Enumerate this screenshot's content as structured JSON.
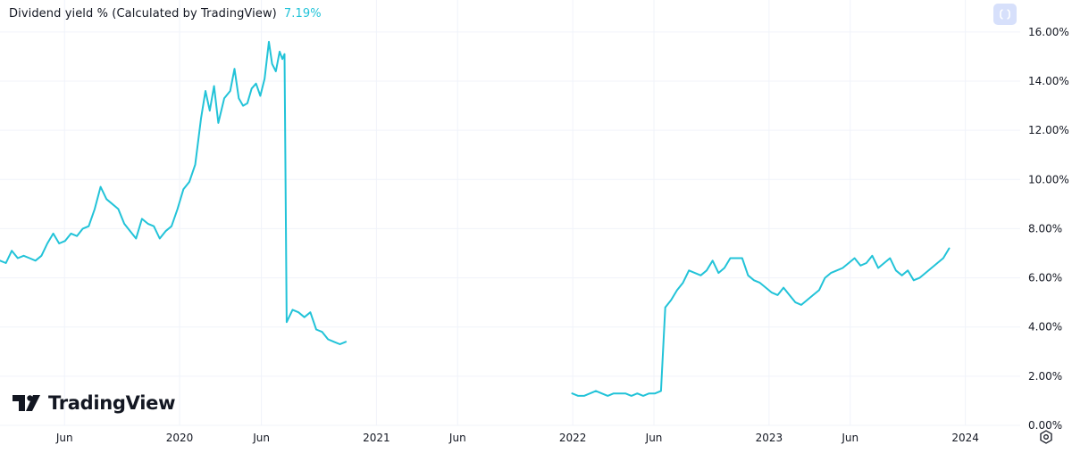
{
  "header": {
    "title": "Dividend yield % (Calculated by TradingView)",
    "value": "7.19%"
  },
  "brand": {
    "name": "TradingView"
  },
  "icons": {
    "reset": "reset-scale-icon",
    "settings": "gear-icon",
    "logo": "tradingview-logo-icon"
  },
  "colors": {
    "line": "#22c3d8",
    "grid": "#f0f3fa",
    "axis_text": "#131722",
    "reset_bg": "#d7e0fb"
  },
  "chart_data": {
    "type": "line",
    "title": "Dividend yield % (Calculated by TradingView)",
    "last_value_label": "7.19%",
    "y_ticks": [
      "16.00%",
      "14.00%",
      "12.00%",
      "10.00%",
      "8.00%",
      "6.00%",
      "4.00%",
      "2.00%",
      "0.00%"
    ],
    "y_tick_values": [
      16,
      14,
      12,
      10,
      8,
      6,
      4,
      2,
      0
    ],
    "ylim": [
      0,
      17.3
    ],
    "x_range": [
      "2019-02-01",
      "2024-04-12"
    ],
    "x_ticks": [
      {
        "label": "Jun",
        "date": "2019-06-01"
      },
      {
        "label": "2020",
        "date": "2020-01-01"
      },
      {
        "label": "Jun",
        "date": "2020-06-01"
      },
      {
        "label": "2021",
        "date": "2021-01-01"
      },
      {
        "label": "Jun",
        "date": "2021-06-01"
      },
      {
        "label": "2022",
        "date": "2022-01-01"
      },
      {
        "label": "Jun",
        "date": "2022-06-01"
      },
      {
        "label": "2023",
        "date": "2023-01-01"
      },
      {
        "label": "Jun",
        "date": "2023-06-01"
      },
      {
        "label": "2024",
        "date": "2024-01-01"
      }
    ],
    "grid": true,
    "series": [
      {
        "segments": [
          [
            [
              "2019-02-01",
              6.7
            ],
            [
              "2019-02-12",
              6.6
            ],
            [
              "2019-02-23",
              7.1
            ],
            [
              "2019-03-06",
              6.8
            ],
            [
              "2019-03-17",
              6.9
            ],
            [
              "2019-03-28",
              6.8
            ],
            [
              "2019-04-08",
              6.7
            ],
            [
              "2019-04-19",
              6.9
            ],
            [
              "2019-04-30",
              7.4
            ],
            [
              "2019-05-11",
              7.8
            ],
            [
              "2019-05-22",
              7.4
            ],
            [
              "2019-06-02",
              7.5
            ],
            [
              "2019-06-13",
              7.8
            ],
            [
              "2019-06-24",
              7.7
            ],
            [
              "2019-07-05",
              8.0
            ],
            [
              "2019-07-16",
              8.1
            ],
            [
              "2019-07-27",
              8.8
            ],
            [
              "2019-08-07",
              9.7
            ],
            [
              "2019-08-18",
              9.2
            ],
            [
              "2019-08-29",
              9.0
            ],
            [
              "2019-09-09",
              8.8
            ],
            [
              "2019-09-20",
              8.2
            ],
            [
              "2019-10-01",
              7.9
            ],
            [
              "2019-10-12",
              7.6
            ],
            [
              "2019-10-23",
              8.4
            ],
            [
              "2019-11-03",
              8.2
            ],
            [
              "2019-11-14",
              8.1
            ],
            [
              "2019-11-25",
              7.6
            ],
            [
              "2019-12-06",
              7.9
            ],
            [
              "2019-12-17",
              8.1
            ],
            [
              "2019-12-28",
              8.8
            ],
            [
              "2020-01-08",
              9.6
            ],
            [
              "2020-01-19",
              9.9
            ],
            [
              "2020-01-30",
              10.6
            ],
            [
              "2020-02-10",
              12.5
            ],
            [
              "2020-02-18",
              13.6
            ],
            [
              "2020-02-26",
              12.8
            ],
            [
              "2020-03-05",
              13.8
            ],
            [
              "2020-03-13",
              12.3
            ],
            [
              "2020-03-24",
              13.3
            ],
            [
              "2020-04-04",
              13.6
            ],
            [
              "2020-04-12",
              14.5
            ],
            [
              "2020-04-20",
              13.3
            ],
            [
              "2020-04-28",
              13.0
            ],
            [
              "2020-05-06",
              13.1
            ],
            [
              "2020-05-14",
              13.7
            ],
            [
              "2020-05-22",
              13.9
            ],
            [
              "2020-05-30",
              13.4
            ],
            [
              "2020-06-07",
              14.1
            ],
            [
              "2020-06-15",
              15.6
            ],
            [
              "2020-06-21",
              14.7
            ],
            [
              "2020-06-28",
              14.4
            ],
            [
              "2020-07-05",
              15.2
            ],
            [
              "2020-07-10",
              14.9
            ],
            [
              "2020-07-14",
              15.1
            ],
            [
              "2020-07-18",
              4.2
            ],
            [
              "2020-07-29",
              4.7
            ],
            [
              "2020-08-09",
              4.6
            ],
            [
              "2020-08-20",
              4.4
            ],
            [
              "2020-08-31",
              4.6
            ],
            [
              "2020-09-11",
              3.9
            ],
            [
              "2020-09-22",
              3.8
            ],
            [
              "2020-10-03",
              3.5
            ],
            [
              "2020-10-14",
              3.4
            ],
            [
              "2020-10-25",
              3.3
            ],
            [
              "2020-11-05",
              3.4
            ]
          ],
          [
            [
              "2021-12-31",
              1.3
            ],
            [
              "2022-01-11",
              1.2
            ],
            [
              "2022-01-22",
              1.2
            ],
            [
              "2022-02-02",
              1.3
            ],
            [
              "2022-02-13",
              1.4
            ],
            [
              "2022-02-24",
              1.3
            ],
            [
              "2022-03-07",
              1.2
            ],
            [
              "2022-03-18",
              1.3
            ],
            [
              "2022-03-29",
              1.3
            ],
            [
              "2022-04-09",
              1.3
            ],
            [
              "2022-04-20",
              1.2
            ],
            [
              "2022-05-01",
              1.3
            ],
            [
              "2022-05-12",
              1.2
            ],
            [
              "2022-05-23",
              1.3
            ],
            [
              "2022-06-03",
              1.3
            ],
            [
              "2022-06-14",
              1.4
            ],
            [
              "2022-06-22",
              4.8
            ],
            [
              "2022-07-03",
              5.1
            ],
            [
              "2022-07-14",
              5.5
            ],
            [
              "2022-07-25",
              5.8
            ],
            [
              "2022-08-05",
              6.3
            ],
            [
              "2022-08-16",
              6.2
            ],
            [
              "2022-08-27",
              6.1
            ],
            [
              "2022-09-07",
              6.3
            ],
            [
              "2022-09-18",
              6.7
            ],
            [
              "2022-09-29",
              6.2
            ],
            [
              "2022-10-10",
              6.4
            ],
            [
              "2022-10-21",
              6.8
            ],
            [
              "2022-11-01",
              6.8
            ],
            [
              "2022-11-12",
              6.8
            ],
            [
              "2022-11-23",
              6.1
            ],
            [
              "2022-12-04",
              5.9
            ],
            [
              "2022-12-15",
              5.8
            ],
            [
              "2022-12-26",
              5.6
            ],
            [
              "2023-01-06",
              5.4
            ],
            [
              "2023-01-17",
              5.3
            ],
            [
              "2023-01-28",
              5.6
            ],
            [
              "2023-02-08",
              5.3
            ],
            [
              "2023-02-19",
              5.0
            ],
            [
              "2023-03-02",
              4.9
            ],
            [
              "2023-03-13",
              5.1
            ],
            [
              "2023-03-24",
              5.3
            ],
            [
              "2023-04-04",
              5.5
            ],
            [
              "2023-04-15",
              6.0
            ],
            [
              "2023-04-26",
              6.2
            ],
            [
              "2023-05-07",
              6.3
            ],
            [
              "2023-05-18",
              6.4
            ],
            [
              "2023-05-29",
              6.6
            ],
            [
              "2023-06-09",
              6.8
            ],
            [
              "2023-06-20",
              6.5
            ],
            [
              "2023-07-01",
              6.6
            ],
            [
              "2023-07-12",
              6.9
            ],
            [
              "2023-07-23",
              6.4
            ],
            [
              "2023-08-03",
              6.6
            ],
            [
              "2023-08-14",
              6.8
            ],
            [
              "2023-08-25",
              6.3
            ],
            [
              "2023-09-05",
              6.1
            ],
            [
              "2023-09-16",
              6.3
            ],
            [
              "2023-09-27",
              5.9
            ],
            [
              "2023-10-08",
              6.0
            ],
            [
              "2023-10-19",
              6.2
            ],
            [
              "2023-10-30",
              6.4
            ],
            [
              "2023-11-10",
              6.6
            ],
            [
              "2023-11-21",
              6.8
            ],
            [
              "2023-12-02",
              7.2
            ]
          ]
        ]
      }
    ]
  }
}
